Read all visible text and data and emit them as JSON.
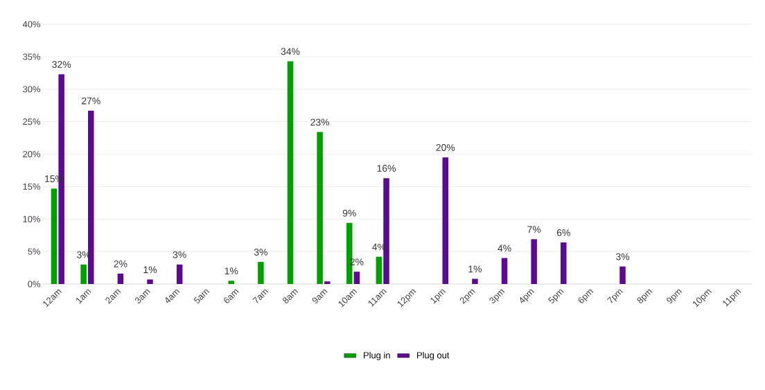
{
  "chart_data": {
    "type": "bar",
    "categories": [
      "12am",
      "1am",
      "2am",
      "3am",
      "4am",
      "5am",
      "6am",
      "7am",
      "8am",
      "9am",
      "10am",
      "11am",
      "12pm",
      "1pm",
      "2pm",
      "3pm",
      "4pm",
      "5pm",
      "6pm",
      "7pm",
      "8pm",
      "9pm",
      "10pm",
      "11pm"
    ],
    "series": [
      {
        "name": "Plug in",
        "color": "#00a000",
        "values": [
          14.7,
          3.0,
          null,
          null,
          null,
          null,
          0.5,
          3.4,
          34.3,
          23.4,
          9.4,
          4.2,
          null,
          null,
          null,
          null,
          null,
          null,
          null,
          null,
          null,
          null,
          null,
          null
        ],
        "value_labels": [
          "15%",
          "3%",
          null,
          null,
          null,
          null,
          "1%",
          "3%",
          "34%",
          "23%",
          "9%",
          "4%",
          null,
          null,
          null,
          null,
          null,
          null,
          null,
          null,
          null,
          null,
          null,
          null
        ]
      },
      {
        "name": "Plug out",
        "color": "#5b0a91",
        "values": [
          32.3,
          26.7,
          1.6,
          0.7,
          3.0,
          null,
          null,
          null,
          null,
          0.4,
          1.9,
          16.3,
          null,
          19.5,
          0.8,
          4.0,
          6.9,
          6.4,
          null,
          2.7,
          null,
          null,
          null,
          null
        ],
        "value_labels": [
          "32%",
          "27%",
          "2%",
          "1%",
          "3%",
          null,
          null,
          null,
          null,
          null,
          "2%",
          "16%",
          null,
          "20%",
          "1%",
          "4%",
          "7%",
          "6%",
          null,
          "3%",
          null,
          null,
          null,
          null
        ]
      }
    ],
    "ylim": [
      0,
      40
    ],
    "yticks": [
      {
        "value": 0,
        "label": "0%"
      },
      {
        "value": 5,
        "label": "5%"
      },
      {
        "value": 10,
        "label": "10%"
      },
      {
        "value": 15,
        "label": "15%"
      },
      {
        "value": 20,
        "label": "20%"
      },
      {
        "value": 25,
        "label": "25%"
      },
      {
        "value": 30,
        "label": "30%"
      },
      {
        "value": 35,
        "label": "35%"
      },
      {
        "value": 40,
        "label": "40%"
      }
    ],
    "grid": "y",
    "legend": "bottom"
  }
}
